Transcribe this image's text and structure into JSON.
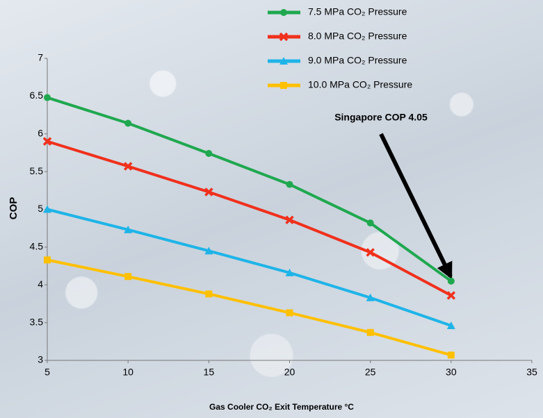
{
  "chart_data": {
    "type": "line",
    "x_label": "Gas Cooler CO₂ Exit Temperature °C",
    "y_label": "COP",
    "annotation": "Singapore COP 4.05",
    "x": [
      5,
      10,
      15,
      20,
      25,
      30
    ],
    "series": [
      {
        "name": "7.5 MPa CO₂ Pressure",
        "color": "#1fa84f",
        "marker": "circle",
        "values": [
          6.48,
          6.14,
          5.74,
          5.33,
          4.82,
          4.05
        ]
      },
      {
        "name": "8.0 MPa CO₂ Pressure",
        "color": "#f0301c",
        "marker": "x",
        "values": [
          5.9,
          5.57,
          5.23,
          4.86,
          4.43,
          3.86
        ]
      },
      {
        "name": "9.0 MPa CO₂ Pressure",
        "color": "#1eb4e8",
        "marker": "triangle",
        "values": [
          5.0,
          4.73,
          4.45,
          4.16,
          3.83,
          3.46
        ]
      },
      {
        "name": "10.0 MPa CO₂ Pressure",
        "color": "#ffc000",
        "marker": "square",
        "values": [
          4.33,
          4.11,
          3.88,
          3.63,
          3.37,
          3.07
        ]
      }
    ],
    "xlim": [
      5,
      35
    ],
    "xticks": [
      5,
      10,
      15,
      20,
      25,
      30,
      35
    ],
    "ylim": [
      3,
      7
    ],
    "yticks": [
      3,
      3.5,
      4,
      4.5,
      5,
      5.5,
      6,
      6.5,
      7
    ],
    "legend": "top"
  }
}
